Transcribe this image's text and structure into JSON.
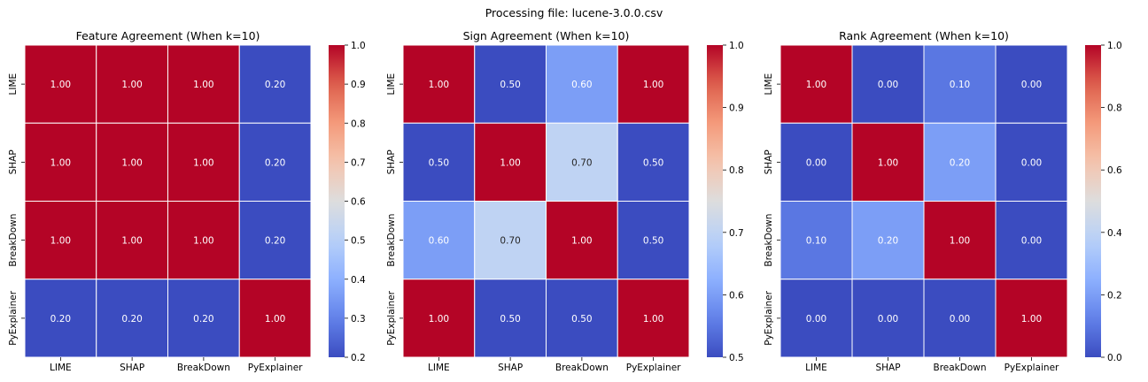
{
  "suptitle": "Processing file: lucene-3.0.0.csv",
  "chart_data": [
    {
      "type": "heatmap",
      "title": "Feature Agreement (When k=10)",
      "xlabels": [
        "LIME",
        "SHAP",
        "BreakDown",
        "PyExplainer"
      ],
      "ylabels": [
        "LIME",
        "SHAP",
        "BreakDown",
        "PyExplainer"
      ],
      "values": [
        [
          1.0,
          1.0,
          1.0,
          0.2
        ],
        [
          1.0,
          1.0,
          1.0,
          0.2
        ],
        [
          1.0,
          1.0,
          1.0,
          0.2
        ],
        [
          0.2,
          0.2,
          0.2,
          1.0
        ]
      ],
      "colorbar": {
        "min": 0.2,
        "max": 1.0,
        "ticks": [
          0.2,
          0.3,
          0.4,
          0.5,
          0.6,
          0.7,
          0.8,
          0.9,
          1.0
        ],
        "cmap": "coolwarm"
      }
    },
    {
      "type": "heatmap",
      "title": "Sign Agreement (When k=10)",
      "xlabels": [
        "LIME",
        "SHAP",
        "BreakDown",
        "PyExplainer"
      ],
      "ylabels": [
        "LIME",
        "SHAP",
        "BreakDown",
        "PyExplainer"
      ],
      "values": [
        [
          1.0,
          0.5,
          0.6,
          1.0
        ],
        [
          0.5,
          1.0,
          0.7,
          0.5
        ],
        [
          0.6,
          0.7,
          1.0,
          0.5
        ],
        [
          1.0,
          0.5,
          0.5,
          1.0
        ]
      ],
      "colorbar": {
        "min": 0.5,
        "max": 1.0,
        "ticks": [
          0.5,
          0.6,
          0.7,
          0.8,
          0.9,
          1.0
        ],
        "cmap": "coolwarm"
      }
    },
    {
      "type": "heatmap",
      "title": "Rank Agreement (When k=10)",
      "xlabels": [
        "LIME",
        "SHAP",
        "BreakDown",
        "PyExplainer"
      ],
      "ylabels": [
        "LIME",
        "SHAP",
        "BreakDown",
        "PyExplainer"
      ],
      "values": [
        [
          1.0,
          0.0,
          0.1,
          0.0
        ],
        [
          0.0,
          1.0,
          0.2,
          0.0
        ],
        [
          0.1,
          0.2,
          1.0,
          0.0
        ],
        [
          0.0,
          0.0,
          0.0,
          1.0
        ]
      ],
      "colorbar": {
        "min": 0.0,
        "max": 1.0,
        "ticks": [
          0.0,
          0.2,
          0.4,
          0.6,
          0.8,
          1.0
        ],
        "cmap": "coolwarm"
      }
    }
  ]
}
